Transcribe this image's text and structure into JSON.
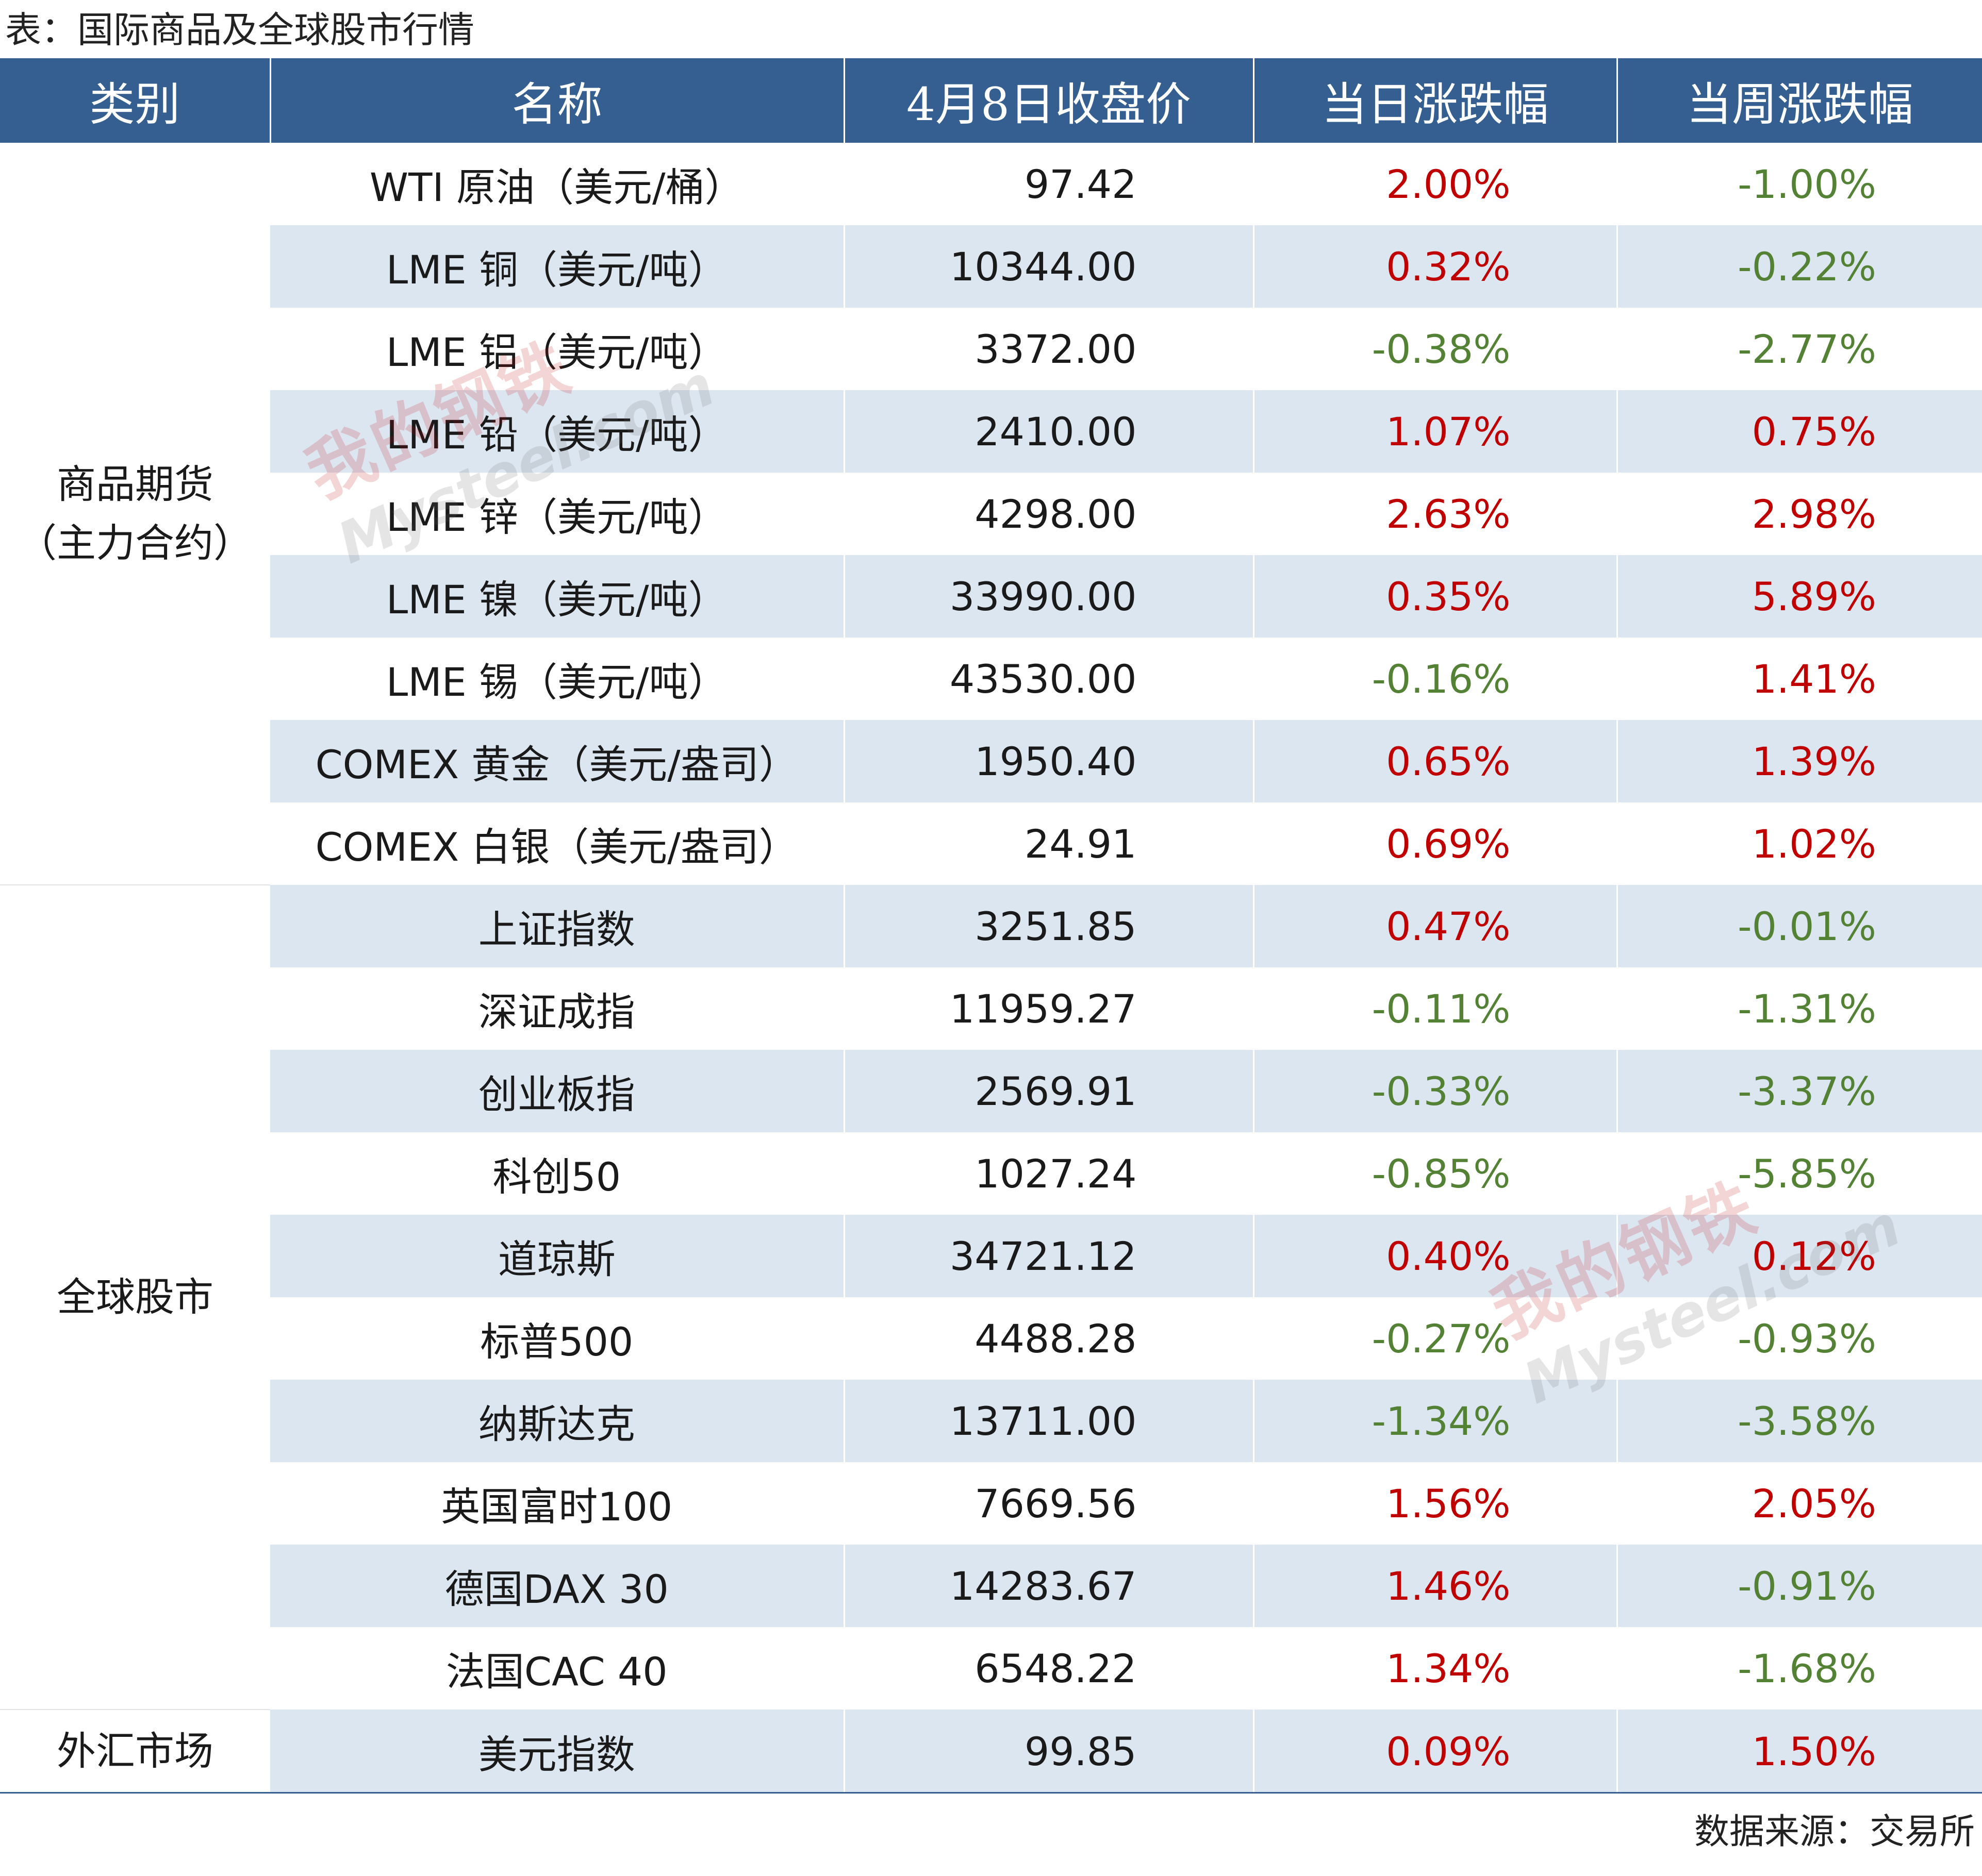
{
  "title": "表：国际商品及全球股市行情",
  "header": {
    "category": "类别",
    "name": "名称",
    "close": "4月8日收盘价",
    "daily": "当日涨跌幅",
    "weekly": "当周涨跌幅"
  },
  "groups": [
    {
      "label_lines": [
        "商品期货",
        "（主力合约）"
      ],
      "rows": [
        {
          "name": "WTI 原油（美元/桶）",
          "close": "97.42",
          "daily": "2.00%",
          "weekly": "-1.00%"
        },
        {
          "name": "LME 铜（美元/吨）",
          "close": "10344.00",
          "daily": "0.32%",
          "weekly": "-0.22%"
        },
        {
          "name": "LME 铝（美元/吨）",
          "close": "3372.00",
          "daily": "-0.38%",
          "weekly": "-2.77%"
        },
        {
          "name": "LME 铅（美元/吨）",
          "close": "2410.00",
          "daily": "1.07%",
          "weekly": "0.75%"
        },
        {
          "name": "LME 锌（美元/吨）",
          "close": "4298.00",
          "daily": "2.63%",
          "weekly": "2.98%"
        },
        {
          "name": "LME 镍（美元/吨）",
          "close": "33990.00",
          "daily": "0.35%",
          "weekly": "5.89%"
        },
        {
          "name": "LME 锡（美元/吨）",
          "close": "43530.00",
          "daily": "-0.16%",
          "weekly": "1.41%"
        },
        {
          "name": "COMEX 黄金（美元/盎司）",
          "close": "1950.40",
          "daily": "0.65%",
          "weekly": "1.39%"
        },
        {
          "name": "COMEX 白银（美元/盎司）",
          "close": "24.91",
          "daily": "0.69%",
          "weekly": "1.02%"
        }
      ]
    },
    {
      "label_lines": [
        "全球股市"
      ],
      "rows": [
        {
          "name": "上证指数",
          "close": "3251.85",
          "daily": "0.47%",
          "weekly": "-0.01%"
        },
        {
          "name": "深证成指",
          "close": "11959.27",
          "daily": "-0.11%",
          "weekly": "-1.31%"
        },
        {
          "name": "创业板指",
          "close": "2569.91",
          "daily": "-0.33%",
          "weekly": "-3.37%"
        },
        {
          "name": "科创50",
          "close": "1027.24",
          "daily": "-0.85%",
          "weekly": "-5.85%"
        },
        {
          "name": "道琼斯",
          "close": "34721.12",
          "daily": "0.40%",
          "weekly": "0.12%"
        },
        {
          "name": "标普500",
          "close": "4488.28",
          "daily": "-0.27%",
          "weekly": "-0.93%"
        },
        {
          "name": "纳斯达克",
          "close": "13711.00",
          "daily": "-1.34%",
          "weekly": "-3.58%"
        },
        {
          "name": "英国富时100",
          "close": "7669.56",
          "daily": "1.56%",
          "weekly": "2.05%"
        },
        {
          "name": "德国DAX 30",
          "close": "14283.67",
          "daily": "1.46%",
          "weekly": "-0.91%"
        },
        {
          "name": "法国CAC 40",
          "close": "6548.22",
          "daily": "1.34%",
          "weekly": "-1.68%"
        }
      ]
    },
    {
      "label_lines": [
        "外汇市场"
      ],
      "rows": [
        {
          "name": "美元指数",
          "close": "99.85",
          "daily": "0.09%",
          "weekly": "1.50%"
        }
      ]
    }
  ],
  "source": "数据来源：交易所",
  "watermark": {
    "cn": "我的钢铁",
    "en": "Mysteel.com"
  },
  "colors": {
    "header_bg": "#355f91",
    "stripe": "#dce6f1",
    "up": "#c00000",
    "down": "#548235"
  }
}
